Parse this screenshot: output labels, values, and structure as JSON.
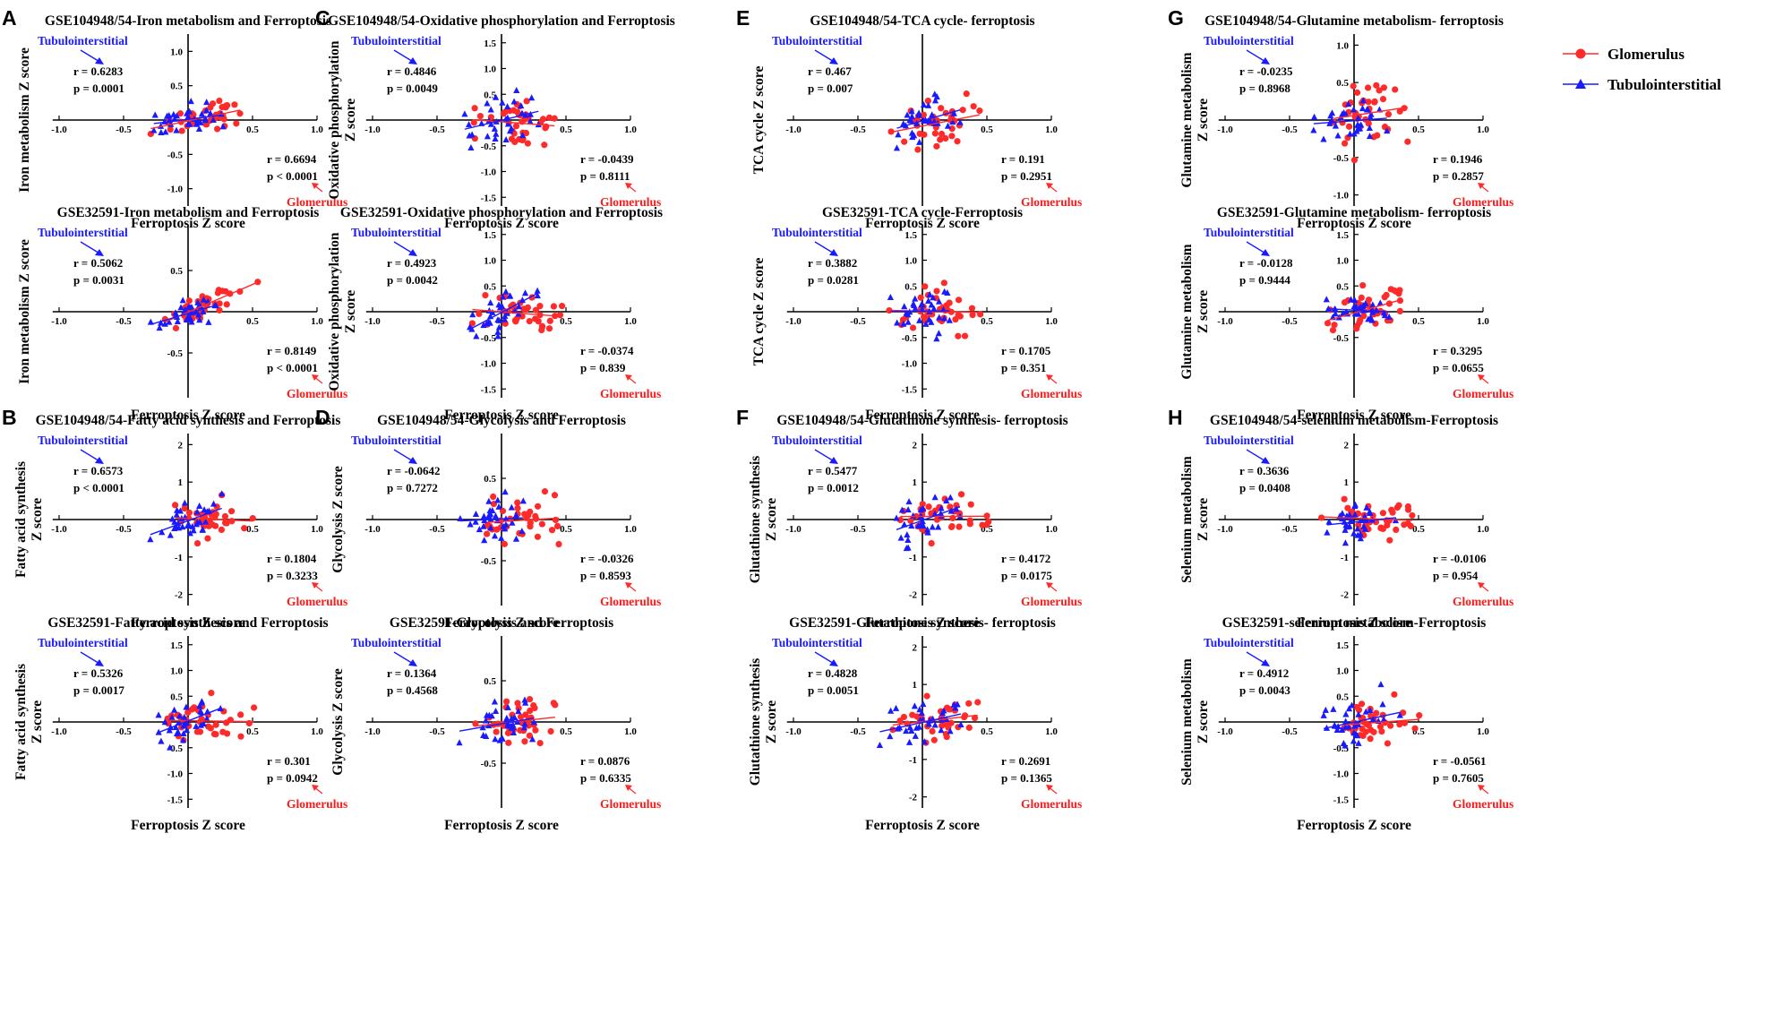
{
  "legend": {
    "glomerulus": "Glomerulus",
    "tubulointerstitial": "Tubulointerstitial"
  },
  "colors": {
    "glomerulus": "#ff2a2a",
    "tubulointerstitial": "#1a1aff",
    "axis": "#000000"
  },
  "common": {
    "xlabel": "Ferroptosis Z score",
    "tubu_label": "Tubulointerstitial",
    "glom_label": "Glomerulus"
  },
  "chart_data": [
    {
      "type": "scatter",
      "panel": "A",
      "title": "GSE104948/54-Iron metabolism and Ferroptosis",
      "xlabel": "Ferroptosis Z score",
      "ylabel": [
        "Iron metabolism Z score"
      ],
      "xticks": [
        "-1.0",
        "-0.5",
        "0.5",
        "1.0"
      ],
      "yticks": [
        {
          "v": -1.0,
          "t": "-1.0"
        },
        {
          "v": -0.5,
          "t": "-0.5"
        },
        {
          "v": 0.5,
          "t": "0.5"
        },
        {
          "v": 1.0,
          "t": "1.0"
        }
      ],
      "ylim": [
        -1.2,
        1.2
      ],
      "slope_g": 0.35,
      "slope_t": 0.3,
      "spread_g": 0.2,
      "spread_t": 0.18,
      "series": [
        {
          "name": "Tubulointerstitial",
          "r": "r = 0.6283",
          "p": "p = 0.0001"
        },
        {
          "name": "Glomerulus",
          "r": "r = 0.6694",
          "p": "p < 0.0001"
        }
      ]
    },
    {
      "type": "scatter",
      "panel": "",
      "title": "GSE32591-Iron metabolism and Ferroptosis",
      "xlabel": "Ferroptosis Z score",
      "ylabel": [
        "Iron metabolism Z score"
      ],
      "xticks": [
        "-1.0",
        "-0.5",
        "0.5",
        "1.0"
      ],
      "yticks": [
        {
          "v": -0.5,
          "t": "-0.5"
        },
        {
          "v": 0.5,
          "t": "0.5"
        }
      ],
      "ylim": [
        -0.9,
        1.0
      ],
      "slope_g": 0.55,
      "slope_t": 0.4,
      "spread_g": 0.14,
      "spread_t": 0.14,
      "series": [
        {
          "name": "Tubulointerstitial",
          "r": "r = 0.5062",
          "p": "p = 0.0031"
        },
        {
          "name": "Glomerulus",
          "r": "r = 0.8149",
          "p": "p < 0.0001"
        }
      ]
    },
    {
      "type": "scatter",
      "panel": "B",
      "title": "GSE104948/54-Fatty acid synthesis and Ferroptosis",
      "xlabel": "Ferroptosis Z score",
      "ylabel": [
        "Fatty acid synthesis",
        "Z score"
      ],
      "xticks": [
        "-1.0",
        "-0.5",
        "0.5",
        "1.0"
      ],
      "yticks": [
        {
          "v": -2,
          "t": "-2"
        },
        {
          "v": -1,
          "t": "-1"
        },
        {
          "v": 1,
          "t": "1"
        },
        {
          "v": 2,
          "t": "2"
        }
      ],
      "ylim": [
        -2.2,
        2.2
      ],
      "slope_g": 0.2,
      "slope_t": 1.3,
      "spread_g": 0.5,
      "spread_t": 0.45,
      "series": [
        {
          "name": "Tubulointerstitial",
          "r": "r = 0.6573",
          "p": "p < 0.0001"
        },
        {
          "name": "Glomerulus",
          "r": "r = 0.1804",
          "p": "p = 0.3233"
        }
      ]
    },
    {
      "type": "scatter",
      "panel": "",
      "title": "GSE32591-Fatty acid synthesis and Ferroptosis",
      "xlabel": "Ferroptosis Z score",
      "ylabel": [
        "Fatty acid synthesis",
        "Z score"
      ],
      "xticks": [
        "-1.0",
        "-0.5",
        "0.5",
        "1.0"
      ],
      "yticks": [
        {
          "v": -1.5,
          "t": "-1.5"
        },
        {
          "v": -1.0,
          "t": "-1.0"
        },
        {
          "v": -0.5,
          "t": "-0.5"
        },
        {
          "v": 0.5,
          "t": "0.5"
        },
        {
          "v": 1.0,
          "t": "1.0"
        },
        {
          "v": 1.5,
          "t": "1.5"
        }
      ],
      "ylim": [
        -1.6,
        1.6
      ],
      "slope_g": 0.3,
      "slope_t": 0.8,
      "spread_g": 0.35,
      "spread_t": 0.3,
      "series": [
        {
          "name": "Tubulointerstitial",
          "r": "r = 0.5326",
          "p": "p = 0.0017"
        },
        {
          "name": "Glomerulus",
          "r": "r = 0.301",
          "p": "p = 0.0942"
        }
      ]
    },
    {
      "type": "scatter",
      "panel": "C",
      "title": "GSE104948/54-Oxidative phosphorylation and Ferroptosis",
      "xlabel": "Ferroptosis Z score",
      "ylabel": [
        "Oxidative phosphorylation",
        "Z score"
      ],
      "xticks": [
        "-1.0",
        "-0.5",
        "0.5",
        "1.0"
      ],
      "yticks": [
        {
          "v": -1.5,
          "t": "-1.5"
        },
        {
          "v": -1.0,
          "t": "-1.0"
        },
        {
          "v": -0.5,
          "t": "-0.5"
        },
        {
          "v": 0.5,
          "t": "0.5"
        },
        {
          "v": 1.0,
          "t": "1.0"
        },
        {
          "v": 1.5,
          "t": "1.5"
        }
      ],
      "ylim": [
        -1.6,
        1.6
      ],
      "slope_g": -0.03,
      "slope_t": 0.9,
      "spread_g": 0.4,
      "spread_t": 0.4,
      "series": [
        {
          "name": "Tubulointerstitial",
          "r": "r = 0.4846",
          "p": "p = 0.0049"
        },
        {
          "name": "Glomerulus",
          "r": "r = -0.0439",
          "p": "p = 0.8111"
        }
      ]
    },
    {
      "type": "scatter",
      "panel": "",
      "title": "GSE32591-Oxidative phosphorylation and Ferroptosis",
      "xlabel": "Ferroptosis Z score",
      "ylabel": [
        "Oxidative phosphorylation",
        "Z score"
      ],
      "xticks": [
        "-1.0",
        "-0.5",
        "0.5",
        "1.0"
      ],
      "yticks": [
        {
          "v": -1.5,
          "t": "-1.5"
        },
        {
          "v": -1.0,
          "t": "-1.0"
        },
        {
          "v": -0.5,
          "t": "-0.5"
        },
        {
          "v": 0.5,
          "t": "0.5"
        },
        {
          "v": 1.0,
          "t": "1.0"
        },
        {
          "v": 1.5,
          "t": "1.5"
        }
      ],
      "ylim": [
        -1.6,
        1.6
      ],
      "slope_g": -0.1,
      "slope_t": 0.8,
      "spread_g": 0.3,
      "spread_t": 0.35,
      "series": [
        {
          "name": "Tubulointerstitial",
          "r": "r = 0.4923",
          "p": "p = 0.0042"
        },
        {
          "name": "Glomerulus",
          "r": "r = -0.0374",
          "p": "p = 0.839"
        }
      ]
    },
    {
      "type": "scatter",
      "panel": "D",
      "title": "GSE104948/54-Glycolysis and Ferroptosis",
      "xlabel": "Ferroptosis Z score",
      "ylabel": [
        "Glycolysis Z score"
      ],
      "xticks": [
        "-1.0",
        "-0.5",
        "0.5",
        "1.0"
      ],
      "yticks": [
        {
          "v": -0.5,
          "t": "-0.5"
        },
        {
          "v": 0.5,
          "t": "0.5"
        }
      ],
      "ylim": [
        -0.9,
        1.0
      ],
      "slope_g": -0.03,
      "slope_t": -0.05,
      "spread_g": 0.3,
      "spread_t": 0.25,
      "series": [
        {
          "name": "Tubulointerstitial",
          "r": "r = -0.0642",
          "p": "p = 0.7272"
        },
        {
          "name": "Glomerulus",
          "r": "r = -0.0326",
          "p": "p = 0.8593"
        }
      ]
    },
    {
      "type": "scatter",
      "panel": "",
      "title": "GSE32591-Glycolysis and Ferroptosis",
      "xlabel": "Ferroptosis Z score",
      "ylabel": [
        "Glycolysis Z score"
      ],
      "xticks": [
        "-1.0",
        "-0.5",
        "0.5",
        "1.0"
      ],
      "yticks": [
        {
          "v": -0.5,
          "t": "-0.5"
        },
        {
          "v": 0.5,
          "t": "0.5"
        }
      ],
      "ylim": [
        -0.9,
        1.0
      ],
      "slope_g": 0.03,
      "slope_t": 0.2,
      "spread_g": 0.25,
      "spread_t": 0.25,
      "series": [
        {
          "name": "Tubulointerstitial",
          "r": "r = 0.1364",
          "p": "p = 0.4568"
        },
        {
          "name": "Glomerulus",
          "r": "r = 0.0876",
          "p": "p = 0.6335"
        }
      ]
    },
    {
      "type": "scatter",
      "panel": "E",
      "title": "GSE104948/54-TCA cycle- ferroptosis",
      "xlabel": "Ferroptosis Z score",
      "ylabel": [
        "TCA cycle Z score"
      ],
      "xticks": [
        "-1.0",
        "-0.5",
        "0.5",
        "1.0"
      ],
      "yticks": [],
      "ylim": [
        -1.6,
        1.6
      ],
      "slope_g": 0.2,
      "slope_t": 0.7,
      "spread_g": 0.4,
      "spread_t": 0.4,
      "series": [
        {
          "name": "Tubulointerstitial",
          "r": "r = 0.467",
          "p": "p = 0.007"
        },
        {
          "name": "Glomerulus",
          "r": "r = 0.191",
          "p": "p = 0.2951"
        }
      ]
    },
    {
      "type": "scatter",
      "panel": "",
      "title": "GSE32591-TCA cycle-Ferroptosis",
      "xlabel": "Ferroptosis Z score",
      "ylabel": [
        "TCA cycle Z score"
      ],
      "xticks": [
        "-1.0",
        "-0.5",
        "0.5",
        "1.0"
      ],
      "yticks": [
        {
          "v": -1.5,
          "t": "-1.5"
        },
        {
          "v": -1.0,
          "t": "-1.0"
        },
        {
          "v": -0.5,
          "t": "-0.5"
        },
        {
          "v": 0.5,
          "t": "0.5"
        },
        {
          "v": 1.0,
          "t": "1.0"
        },
        {
          "v": 1.5,
          "t": "1.5"
        }
      ],
      "ylim": [
        -1.6,
        1.6
      ],
      "slope_g": 0.15,
      "slope_t": 0.5,
      "spread_g": 0.45,
      "spread_t": 0.4,
      "series": [
        {
          "name": "Tubulointerstitial",
          "r": "r = 0.3882",
          "p": "p = 0.0281"
        },
        {
          "name": "Glomerulus",
          "r": "r = 0.1705",
          "p": "p = 0.351"
        }
      ]
    },
    {
      "type": "scatter",
      "panel": "F",
      "title": "GSE104948/54-Glutathione synthesis- ferroptosis",
      "xlabel": "Ferroptosis Z score",
      "ylabel": [
        "Glutathione synthesis",
        "Z score"
      ],
      "xticks": [
        "-1.0",
        "-0.5",
        "0.5",
        "1.0"
      ],
      "yticks": [
        {
          "v": -2,
          "t": "-2"
        },
        {
          "v": -1,
          "t": "-1"
        },
        {
          "v": 1,
          "t": "1"
        },
        {
          "v": 2,
          "t": "2"
        }
      ],
      "ylim": [
        -2.2,
        2.2
      ],
      "slope_g": 0.5,
      "slope_t": 1.1,
      "spread_g": 0.5,
      "spread_t": 0.45,
      "series": [
        {
          "name": "Tubulointerstitial",
          "r": "r = 0.5477",
          "p": "p = 0.0012"
        },
        {
          "name": "Glomerulus",
          "r": "r = 0.4172",
          "p": "p = 0.0175"
        }
      ]
    },
    {
      "type": "scatter",
      "panel": "",
      "title": "GSE32591-Glutathione synthesis- ferroptosis",
      "xlabel": "Ferroptosis Z score",
      "ylabel": [
        "Glutathione synthesis",
        "Z score"
      ],
      "xticks": [
        "-1.0",
        "-0.5",
        "0.5",
        "1.0"
      ],
      "yticks": [
        {
          "v": -2,
          "t": "-2"
        },
        {
          "v": -1,
          "t": "-1"
        },
        {
          "v": 1,
          "t": "1"
        },
        {
          "v": 2,
          "t": "2"
        }
      ],
      "ylim": [
        -2.2,
        2.2
      ],
      "slope_g": 0.2,
      "slope_t": 0.8,
      "spread_g": 0.45,
      "spread_t": 0.45,
      "series": [
        {
          "name": "Tubulointerstitial",
          "r": "r = 0.4828",
          "p": "p = 0.0051"
        },
        {
          "name": "Glomerulus",
          "r": "r = 0.2691",
          "p": "p = 0.1365"
        }
      ]
    },
    {
      "type": "scatter",
      "panel": "G",
      "title": "GSE104948/54-Glutamine metabolism- ferroptosis",
      "xlabel": "Ferroptosis Z score",
      "ylabel": [
        "Glutamine metabolism",
        "Z score"
      ],
      "xticks": [
        "-1.0",
        "-0.5",
        "0.5",
        "1.0"
      ],
      "yticks": [
        {
          "v": -1.0,
          "t": "-1.0"
        },
        {
          "v": -0.5,
          "t": "-0.5"
        },
        {
          "v": 0.5,
          "t": "0.5"
        },
        {
          "v": 1.0,
          "t": "1.0"
        }
      ],
      "ylim": [
        -1.1,
        1.1
      ],
      "slope_g": 0.3,
      "slope_t": 0.02,
      "spread_g": 0.35,
      "spread_t": 0.25,
      "series": [
        {
          "name": "Tubulointerstitial",
          "r": "r = -0.0235",
          "p": "p = 0.8968"
        },
        {
          "name": "Glomerulus",
          "r": "r = 0.1946",
          "p": "p = 0.2857"
        }
      ]
    },
    {
      "type": "scatter",
      "panel": "",
      "title": "GSE32591-Glutamine metabolism- ferroptosis",
      "xlabel": "Ferroptosis Z score",
      "ylabel": [
        "Glutamine metabolism",
        "Z score"
      ],
      "xticks": [
        "-1.0",
        "-0.5",
        "0.5",
        "1.0"
      ],
      "yticks": [
        {
          "v": -0.5,
          "t": "-0.5"
        },
        {
          "v": 0.5,
          "t": "0.5"
        },
        {
          "v": 1.0,
          "t": "1.0"
        },
        {
          "v": 1.5,
          "t": "1.5"
        }
      ],
      "ylim": [
        -0.8,
        1.6
      ],
      "slope_g": 0.4,
      "slope_t": -0.05,
      "spread_g": 0.35,
      "spread_t": 0.2,
      "series": [
        {
          "name": "Tubulointerstitial",
          "r": "r = -0.0128",
          "p": "p = 0.9444"
        },
        {
          "name": "Glomerulus",
          "r": "r = 0.3295",
          "p": "p = 0.0655"
        }
      ]
    },
    {
      "type": "scatter",
      "panel": "H",
      "title": "GSE104948/54-selenium metabolism-Ferroptosis",
      "xlabel": "Ferroptosis Z score",
      "ylabel": [
        "Selenium metabolism",
        "Z score"
      ],
      "xticks": [
        "-1.0",
        "-0.5",
        "0.5",
        "1.0"
      ],
      "yticks": [
        {
          "v": -2,
          "t": "-2"
        },
        {
          "v": -1,
          "t": "-1"
        },
        {
          "v": 1,
          "t": "1"
        },
        {
          "v": 2,
          "t": "2"
        }
      ],
      "ylim": [
        -2.2,
        2.2
      ],
      "slope_g": -0.02,
      "slope_t": 0.6,
      "spread_g": 0.4,
      "spread_t": 0.4,
      "series": [
        {
          "name": "Tubulointerstitial",
          "r": "r = 0.3636",
          "p": "p = 0.0408"
        },
        {
          "name": "Glomerulus",
          "r": "r = -0.0106",
          "p": "p = 0.954"
        }
      ]
    },
    {
      "type": "scatter",
      "panel": "",
      "title": "GSE32591-selenium metabolism-Ferroptosis",
      "xlabel": "Ferroptosis Z score",
      "ylabel": [
        "Selenium metabolism",
        "Z score"
      ],
      "xticks": [
        "-1.0",
        "-0.5",
        "0.5",
        "1.0"
      ],
      "yticks": [
        {
          "v": -1.5,
          "t": "-1.5"
        },
        {
          "v": -1.0,
          "t": "-1.0"
        },
        {
          "v": -0.5,
          "t": "-0.5"
        },
        {
          "v": 0.5,
          "t": "0.5"
        },
        {
          "v": 1.0,
          "t": "1.0"
        },
        {
          "v": 1.5,
          "t": "1.5"
        }
      ],
      "ylim": [
        -1.6,
        1.6
      ],
      "slope_g": -0.05,
      "slope_t": 0.7,
      "spread_g": 0.4,
      "spread_t": 0.4,
      "series": [
        {
          "name": "Tubulointerstitial",
          "r": "r = 0.4912",
          "p": "p = 0.0043"
        },
        {
          "name": "Glomerulus",
          "r": "r = -0.0561",
          "p": "p = 0.7605"
        }
      ]
    }
  ]
}
